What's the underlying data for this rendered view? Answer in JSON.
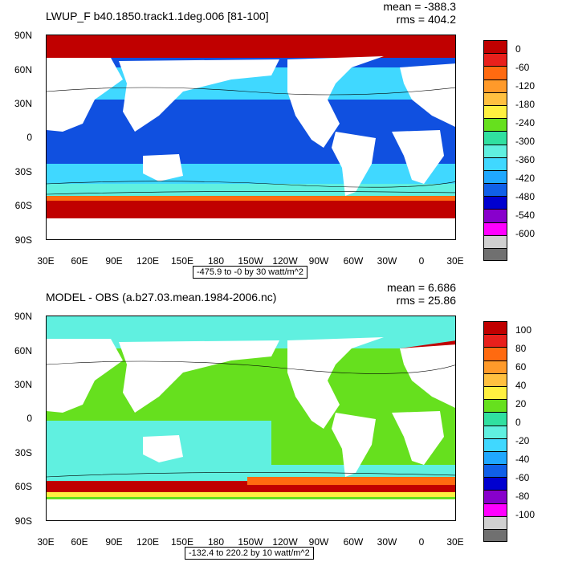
{
  "panels": [
    {
      "title": "LWUP_F b40.1850.track1.1deg.006 [81-100]",
      "mean": "mean = -388.3",
      "rms": "rms = 404.2",
      "range_note": "-475.9 to -0 by 30 watt/m^2",
      "colorbar_labels": [
        "0",
        "-60",
        "-120",
        "-180",
        "-240",
        "-300",
        "-360",
        "-420",
        "-480",
        "-540",
        "-600"
      ],
      "colors": [
        "#c00000",
        "#e8201c",
        "#ff6a10",
        "#ff9a2a",
        "#ffc040",
        "#fff040",
        "#66e01e",
        "#30e0a0",
        "#60f0e0",
        "#40d8ff",
        "#20a8ff",
        "#1060e8",
        "#0000d0",
        "#8800cc",
        "#ff00ff",
        "#d0d0d0",
        "#707070"
      ],
      "ocean_fill": {
        "polar": "#c00000",
        "mid": "#40d8ff",
        "tropics": "#1050e0"
      }
    },
    {
      "title": "MODEL - OBS (a.b27.03.mean.1984-2006.nc)",
      "mean": "mean = 6.686",
      "rms": "rms = 25.86",
      "range_note": "-132.4 to 220.2 by 10 watt/m^2",
      "colorbar_labels": [
        "100",
        "80",
        "60",
        "40",
        "20",
        "0",
        "-20",
        "-40",
        "-60",
        "-80",
        "-100"
      ],
      "colors": [
        "#c00000",
        "#e8201c",
        "#ff6a10",
        "#ff9a2a",
        "#ffc040",
        "#fff040",
        "#66e01e",
        "#30e0a0",
        "#60f0e0",
        "#40d8ff",
        "#20a8ff",
        "#1060e8",
        "#0000d0",
        "#8800cc",
        "#ff00ff",
        "#d0d0d0",
        "#707070"
      ],
      "ocean_fill": {
        "polar": "#60f0e0",
        "mid": "#30e0a0",
        "tropics": "#66e01e"
      }
    }
  ],
  "lat_labels": [
    "90N",
    "60N",
    "30N",
    "0",
    "30S",
    "60S",
    "90S"
  ],
  "lon_labels": [
    "30E",
    "60E",
    "90E",
    "120E",
    "150E",
    "180",
    "150W",
    "120W",
    "90W",
    "60W",
    "30W",
    "0",
    "30E"
  ]
}
